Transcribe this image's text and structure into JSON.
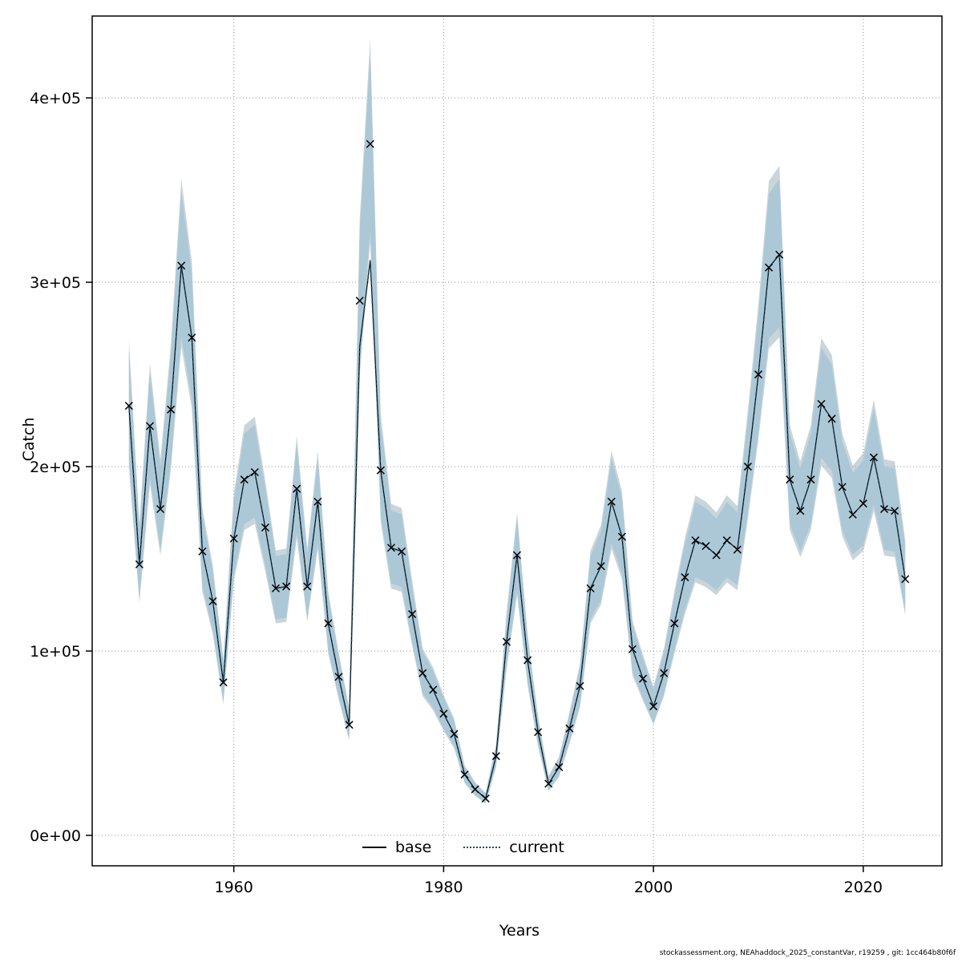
{
  "figure": {
    "caption": "stockassessment.org, NEAhaddock_2025_constantVar, r19259 , git: 1cc464b80f6f"
  },
  "chart_data": {
    "type": "line",
    "title": "",
    "xlabel": "Years",
    "ylabel": "Catch",
    "xlim": [
      1946.5,
      2027.5
    ],
    "ylim": [
      -16500,
      444400
    ],
    "x_ticks": [
      1960,
      1980,
      2000,
      2020
    ],
    "y_ticks": [
      {
        "value": 0,
        "label": "0e+00"
      },
      {
        "value": 100000,
        "label": "1e+05"
      },
      {
        "value": 200000,
        "label": "2e+05"
      },
      {
        "value": 300000,
        "label": "3e+05"
      },
      {
        "value": 400000,
        "label": "4e+05"
      }
    ],
    "grid": "dotted",
    "legend": [
      {
        "label": "base",
        "style": "solid",
        "color": "#000000"
      },
      {
        "label": "current",
        "style": "dotted",
        "color": "#1b4a66"
      }
    ],
    "colors": {
      "band": "#a9c6d6",
      "band_base": "#9fb2bc",
      "current_line": "#1b4a66",
      "base_line": "#000000",
      "marker": "#000000",
      "gridline": "#909090"
    },
    "years": [
      1950,
      1951,
      1952,
      1953,
      1954,
      1955,
      1956,
      1957,
      1958,
      1959,
      1960,
      1961,
      1962,
      1963,
      1964,
      1965,
      1966,
      1967,
      1968,
      1969,
      1970,
      1971,
      1972,
      1973,
      1974,
      1975,
      1976,
      1977,
      1978,
      1979,
      1980,
      1981,
      1982,
      1983,
      1984,
      1985,
      1986,
      1987,
      1988,
      1989,
      1990,
      1991,
      1992,
      1993,
      1994,
      1995,
      1996,
      1997,
      1998,
      1999,
      2000,
      2001,
      2002,
      2003,
      2004,
      2005,
      2006,
      2007,
      2008,
      2009,
      2010,
      2011,
      2012,
      2013,
      2014,
      2015,
      2016,
      2017,
      2018,
      2019,
      2020,
      2021,
      2022,
      2023,
      2024
    ],
    "observed": [
      233000,
      147000,
      222000,
      177000,
      231000,
      309000,
      270000,
      154000,
      127000,
      83000,
      161000,
      193000,
      197000,
      167000,
      134000,
      135000,
      188000,
      135000,
      181000,
      115000,
      86000,
      60000,
      290000,
      375000,
      198000,
      156000,
      154000,
      120000,
      88000,
      79000,
      66000,
      55000,
      33000,
      25000,
      20000,
      43000,
      105000,
      152000,
      95000,
      56000,
      28000,
      37000,
      58000,
      81000,
      134000,
      146000,
      181000,
      162000,
      101000,
      85000,
      70000,
      88000,
      115000,
      140000,
      160000,
      157000,
      152000,
      160000,
      155000,
      200000,
      250000,
      308000,
      315000,
      193000,
      176000,
      193000,
      234000,
      226000,
      189000,
      174000,
      180000,
      205000,
      177000,
      176000,
      139000
    ],
    "fitted": [
      233000,
      147000,
      222000,
      177000,
      231000,
      309000,
      270000,
      154000,
      127000,
      83000,
      161000,
      193000,
      197000,
      167000,
      134000,
      135000,
      188000,
      135000,
      181000,
      115000,
      86000,
      60000,
      265000,
      312000,
      198000,
      156000,
      154000,
      120000,
      88000,
      79000,
      66000,
      55000,
      33000,
      25000,
      20000,
      43000,
      105000,
      152000,
      95000,
      56000,
      28000,
      37000,
      58000,
      81000,
      134000,
      146000,
      181000,
      162000,
      101000,
      85000,
      70000,
      88000,
      115000,
      140000,
      160000,
      157000,
      152000,
      160000,
      155000,
      200000,
      250000,
      308000,
      315000,
      193000,
      176000,
      193000,
      234000,
      226000,
      189000,
      174000,
      180000,
      205000,
      177000,
      176000,
      139000
    ],
    "band": {
      "lower_factor": 0.875,
      "upper_factor": 1.13
    }
  }
}
